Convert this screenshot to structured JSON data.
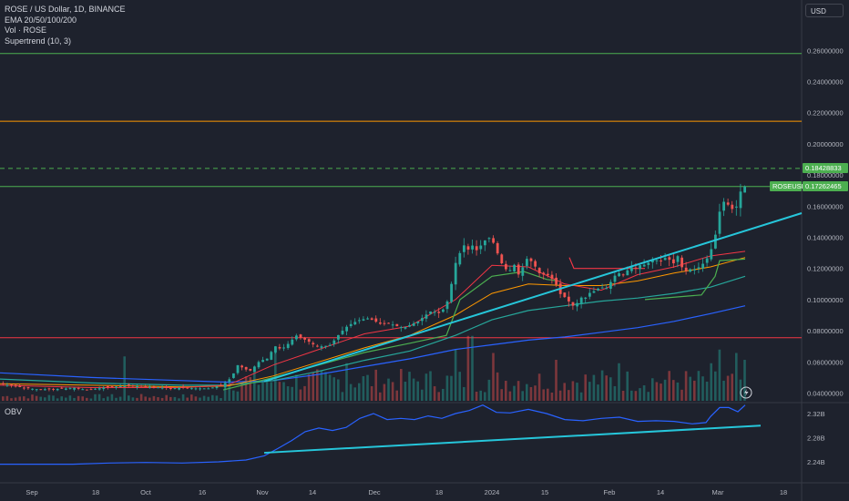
{
  "legend": {
    "symbol": "ROSE / US Dollar, 1D, BINANCE",
    "ema": "EMA 20/50/100/200",
    "vol": "Vol · ROSE",
    "supertrend": "Supertrend (10, 3)"
  },
  "currency": "USD",
  "obv_title": "OBV",
  "colors": {
    "background": "#1e222d",
    "up": "#26a69a",
    "down": "#ef5350",
    "trendline": "#26c6da",
    "obv": "#2962ff",
    "level_green": "#4caf50",
    "level_orange": "#ff9800",
    "level_red": "#f23645",
    "ema_20": "#f23645",
    "ema_50": "#ff9800",
    "ema_100": "#26a69a",
    "ema_200": "#2962ff"
  },
  "chart_data": [
    {
      "type": "candlestick",
      "title": "ROSE / US Dollar, 1D, BINANCE",
      "ylim": [
        0.035,
        0.28
      ],
      "y_ticks": [
        "0.26000000",
        "0.24000000",
        "0.22000000",
        "0.20000000",
        "0.18000000",
        "0.16000000",
        "0.14000000",
        "0.12000000",
        "0.10000000",
        "0.08000000",
        "0.06000000",
        "0.04000000"
      ],
      "x_ticks": [
        "Sep",
        "18",
        "Oct",
        "16",
        "Nov",
        "14",
        "Dec",
        "18",
        "2024",
        "15",
        "Feb",
        "14",
        "Mar",
        "18"
      ],
      "horizontal_levels": [
        {
          "value": 0.258,
          "color": "#4caf50",
          "style": "solid"
        },
        {
          "value": 0.2145,
          "color": "#ff9800",
          "style": "solid"
        },
        {
          "value": 0.1842,
          "color": "#4caf50",
          "style": "dashed",
          "label": "0.18428833"
        },
        {
          "value": 0.1726,
          "color": "#4caf50",
          "style": "solid",
          "label": "0.17262465"
        },
        {
          "value": 0.0755,
          "color": "#f23645",
          "style": "solid"
        }
      ],
      "price_label": {
        "symbol": "ROSEUSD",
        "value": "0.17262465"
      },
      "price_path": [
        [
          0,
          0.046
        ],
        [
          20,
          0.044
        ],
        [
          40,
          0.0425
        ],
        [
          60,
          0.0425
        ],
        [
          75,
          0.043
        ],
        [
          85,
          0.0435
        ],
        [
          95,
          0.042
        ],
        [
          115,
          0.0435
        ],
        [
          135,
          0.0445
        ],
        [
          150,
          0.0445
        ],
        [
          165,
          0.044
        ],
        [
          180,
          0.0435
        ],
        [
          190,
          0.043
        ],
        [
          200,
          0.0435
        ],
        [
          215,
          0.043
        ],
        [
          230,
          0.043
        ],
        [
          245,
          0.045
        ],
        [
          255,
          0.05
        ],
        [
          262,
          0.058
        ],
        [
          268,
          0.056
        ],
        [
          275,
          0.054
        ],
        [
          282,
          0.058
        ],
        [
          288,
          0.062
        ],
        [
          292,
          0.06
        ],
        [
          297,
          0.065
        ],
        [
          303,
          0.07
        ],
        [
          310,
          0.068
        ],
        [
          318,
          0.072
        ],
        [
          326,
          0.077
        ],
        [
          333,
          0.075
        ],
        [
          340,
          0.073
        ],
        [
          348,
          0.07
        ],
        [
          356,
          0.07
        ],
        [
          364,
          0.071
        ],
        [
          372,
          0.077
        ],
        [
          380,
          0.082
        ],
        [
          388,
          0.085
        ],
        [
          396,
          0.087
        ],
        [
          405,
          0.088
        ],
        [
          413,
          0.086
        ],
        [
          420,
          0.084
        ],
        [
          428,
          0.085
        ],
        [
          436,
          0.083
        ],
        [
          444,
          0.082
        ],
        [
          452,
          0.084
        ],
        [
          460,
          0.086
        ],
        [
          468,
          0.09
        ],
        [
          475,
          0.093
        ],
        [
          482,
          0.091
        ],
        [
          490,
          0.095
        ],
        [
          495,
          0.105
        ],
        [
          500,
          0.122
        ],
        [
          505,
          0.129
        ],
        [
          510,
          0.135
        ],
        [
          515,
          0.132
        ],
        [
          520,
          0.135
        ],
        [
          525,
          0.131
        ],
        [
          530,
          0.136
        ],
        [
          535,
          0.139
        ],
        [
          540,
          0.14
        ],
        [
          545,
          0.133
        ],
        [
          550,
          0.125
        ],
        [
          555,
          0.12
        ],
        [
          560,
          0.118
        ],
        [
          565,
          0.123
        ],
        [
          570,
          0.116
        ],
        [
          575,
          0.121
        ],
        [
          580,
          0.127
        ],
        [
          585,
          0.124
        ],
        [
          590,
          0.12
        ],
        [
          595,
          0.115
        ],
        [
          600,
          0.117
        ],
        [
          605,
          0.114
        ],
        [
          610,
          0.112
        ],
        [
          615,
          0.104
        ],
        [
          620,
          0.102
        ],
        [
          625,
          0.099
        ],
        [
          630,
          0.096
        ],
        [
          635,
          0.098
        ],
        [
          640,
          0.102
        ],
        [
          645,
          0.101
        ],
        [
          650,
          0.106
        ],
        [
          655,
          0.105
        ],
        [
          660,
          0.109
        ],
        [
          665,
          0.106
        ],
        [
          670,
          0.11
        ],
        [
          675,
          0.115
        ],
        [
          680,
          0.117
        ],
        [
          685,
          0.116
        ],
        [
          690,
          0.119
        ],
        [
          695,
          0.121
        ],
        [
          700,
          0.12
        ],
        [
          705,
          0.123
        ],
        [
          710,
          0.122
        ],
        [
          715,
          0.125
        ],
        [
          720,
          0.126
        ],
        [
          725,
          0.124
        ],
        [
          730,
          0.127
        ],
        [
          735,
          0.126
        ],
        [
          740,
          0.123
        ],
        [
          745,
          0.128
        ],
        [
          750,
          0.12
        ],
        [
          755,
          0.118
        ],
        [
          760,
          0.12
        ],
        [
          765,
          0.119
        ],
        [
          770,
          0.122
        ],
        [
          775,
          0.124
        ],
        [
          780,
          0.13
        ],
        [
          785,
          0.137
        ],
        [
          790,
          0.155
        ],
        [
          795,
          0.163
        ],
        [
          800,
          0.161
        ],
        [
          805,
          0.158
        ],
        [
          810,
          0.16
        ],
        [
          815,
          0.172
        ],
        [
          818,
          0.1726
        ]
      ],
      "volume_spikes": [
        [
          137,
          0.65
        ],
        [
          300,
          0.8
        ],
        [
          380,
          0.55
        ],
        [
          500,
          0.75
        ],
        [
          515,
          0.95
        ],
        [
          540,
          0.7
        ],
        [
          610,
          0.6
        ],
        [
          680,
          0.55
        ],
        [
          780,
          0.55
        ],
        [
          790,
          0.75
        ],
        [
          805,
          0.7
        ],
        [
          815,
          0.6
        ]
      ],
      "trendline": {
        "x1": 290,
        "y1": 0.0475,
        "x2": 880,
        "y2": 0.1555
      },
      "ema_20": [
        [
          0,
          0.045
        ],
        [
          100,
          0.0435
        ],
        [
          200,
          0.0435
        ],
        [
          250,
          0.045
        ],
        [
          300,
          0.058
        ],
        [
          350,
          0.068
        ],
        [
          400,
          0.078
        ],
        [
          450,
          0.083
        ],
        [
          500,
          0.1
        ],
        [
          540,
          0.122
        ],
        [
          580,
          0.121
        ],
        [
          620,
          0.11
        ],
        [
          660,
          0.106
        ],
        [
          700,
          0.116
        ],
        [
          740,
          0.121
        ],
        [
          780,
          0.128
        ],
        [
          818,
          0.131
        ]
      ],
      "ema_50": [
        [
          0,
          0.046
        ],
        [
          100,
          0.045
        ],
        [
          200,
          0.044
        ],
        [
          250,
          0.0445
        ],
        [
          300,
          0.051
        ],
        [
          350,
          0.06
        ],
        [
          400,
          0.069
        ],
        [
          450,
          0.077
        ],
        [
          500,
          0.09
        ],
        [
          540,
          0.104
        ],
        [
          580,
          0.11
        ],
        [
          620,
          0.109
        ],
        [
          660,
          0.109
        ],
        [
          700,
          0.112
        ],
        [
          740,
          0.117
        ],
        [
          780,
          0.121
        ],
        [
          818,
          0.127
        ]
      ],
      "ema_100": [
        [
          0,
          0.049
        ],
        [
          100,
          0.0465
        ],
        [
          200,
          0.045
        ],
        [
          250,
          0.045
        ],
        [
          300,
          0.048
        ],
        [
          350,
          0.054
        ],
        [
          400,
          0.061
        ],
        [
          450,
          0.067
        ],
        [
          500,
          0.077
        ],
        [
          540,
          0.087
        ],
        [
          580,
          0.093
        ],
        [
          620,
          0.096
        ],
        [
          660,
          0.099
        ],
        [
          700,
          0.101
        ],
        [
          740,
          0.104
        ],
        [
          780,
          0.108
        ],
        [
          818,
          0.115
        ]
      ],
      "ema_200": [
        [
          0,
          0.053
        ],
        [
          100,
          0.05
        ],
        [
          200,
          0.048
        ],
        [
          250,
          0.047
        ],
        [
          300,
          0.048
        ],
        [
          350,
          0.052
        ],
        [
          400,
          0.057
        ],
        [
          450,
          0.062
        ],
        [
          500,
          0.068
        ],
        [
          540,
          0.071
        ],
        [
          580,
          0.074
        ],
        [
          620,
          0.076
        ],
        [
          660,
          0.079
        ],
        [
          700,
          0.082
        ],
        [
          740,
          0.086
        ],
        [
          780,
          0.091
        ],
        [
          818,
          0.096
        ]
      ],
      "supertrend_up": [
        [
          245,
          0.042
        ],
        [
          300,
          0.05
        ],
        [
          350,
          0.058
        ],
        [
          400,
          0.066
        ],
        [
          450,
          0.072
        ],
        [
          490,
          0.077
        ],
        [
          505,
          0.1
        ],
        [
          540,
          0.115
        ],
        [
          575,
          0.118
        ],
        [
          600,
          0.113
        ],
        [
          612,
          0.112
        ]
      ],
      "supertrend_down": [
        [
          625,
          0.127
        ],
        [
          630,
          0.12
        ],
        [
          700,
          0.12
        ],
        [
          708,
          0.12
        ]
      ],
      "supertrend_up2": [
        [
          708,
          0.1
        ],
        [
          770,
          0.103
        ],
        [
          785,
          0.115
        ],
        [
          790,
          0.125
        ],
        [
          818,
          0.126
        ]
      ]
    },
    {
      "type": "line",
      "title": "OBV",
      "ylim": [
        2.215,
        2.345
      ],
      "y_ticks": [
        "2.32B",
        "2.28B",
        "2.24B"
      ],
      "obv_path": [
        [
          0,
          2.236
        ],
        [
          40,
          2.236
        ],
        [
          80,
          2.236
        ],
        [
          120,
          2.238
        ],
        [
          160,
          2.239
        ],
        [
          200,
          2.238
        ],
        [
          240,
          2.24
        ],
        [
          270,
          2.243
        ],
        [
          290,
          2.25
        ],
        [
          305,
          2.262
        ],
        [
          320,
          2.275
        ],
        [
          335,
          2.29
        ],
        [
          350,
          2.296
        ],
        [
          365,
          2.292
        ],
        [
          380,
          2.297
        ],
        [
          395,
          2.312
        ],
        [
          410,
          2.32
        ],
        [
          425,
          2.31
        ],
        [
          440,
          2.312
        ],
        [
          455,
          2.31
        ],
        [
          470,
          2.316
        ],
        [
          485,
          2.312
        ],
        [
          500,
          2.32
        ],
        [
          515,
          2.325
        ],
        [
          530,
          2.334
        ],
        [
          545,
          2.322
        ],
        [
          560,
          2.321
        ],
        [
          580,
          2.327
        ],
        [
          600,
          2.32
        ],
        [
          620,
          2.31
        ],
        [
          640,
          2.308
        ],
        [
          660,
          2.312
        ],
        [
          680,
          2.314
        ],
        [
          700,
          2.307
        ],
        [
          720,
          2.308
        ],
        [
          740,
          2.307
        ],
        [
          760,
          2.303
        ],
        [
          775,
          2.305
        ],
        [
          780,
          2.315
        ],
        [
          790,
          2.33
        ],
        [
          800,
          2.33
        ],
        [
          810,
          2.323
        ],
        [
          818,
          2.334
        ]
      ],
      "trendline": {
        "x1": 290,
        "y1": 2.255,
        "x2": 835,
        "y2": 2.3
      }
    }
  ]
}
